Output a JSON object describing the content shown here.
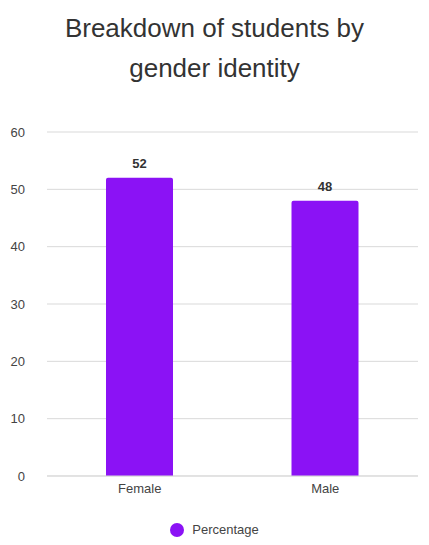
{
  "chart_data": {
    "type": "bar",
    "title": "Breakdown of students by gender identity",
    "categories": [
      "Female",
      "Male"
    ],
    "series": [
      {
        "name": "Percentage",
        "color": "#8b12f5",
        "values": [
          52,
          48
        ]
      }
    ],
    "ylim": [
      0,
      60
    ],
    "yticks": [
      0,
      10,
      20,
      30,
      40,
      50,
      60
    ],
    "grid": true,
    "data_labels": true,
    "legend": "bottom"
  }
}
